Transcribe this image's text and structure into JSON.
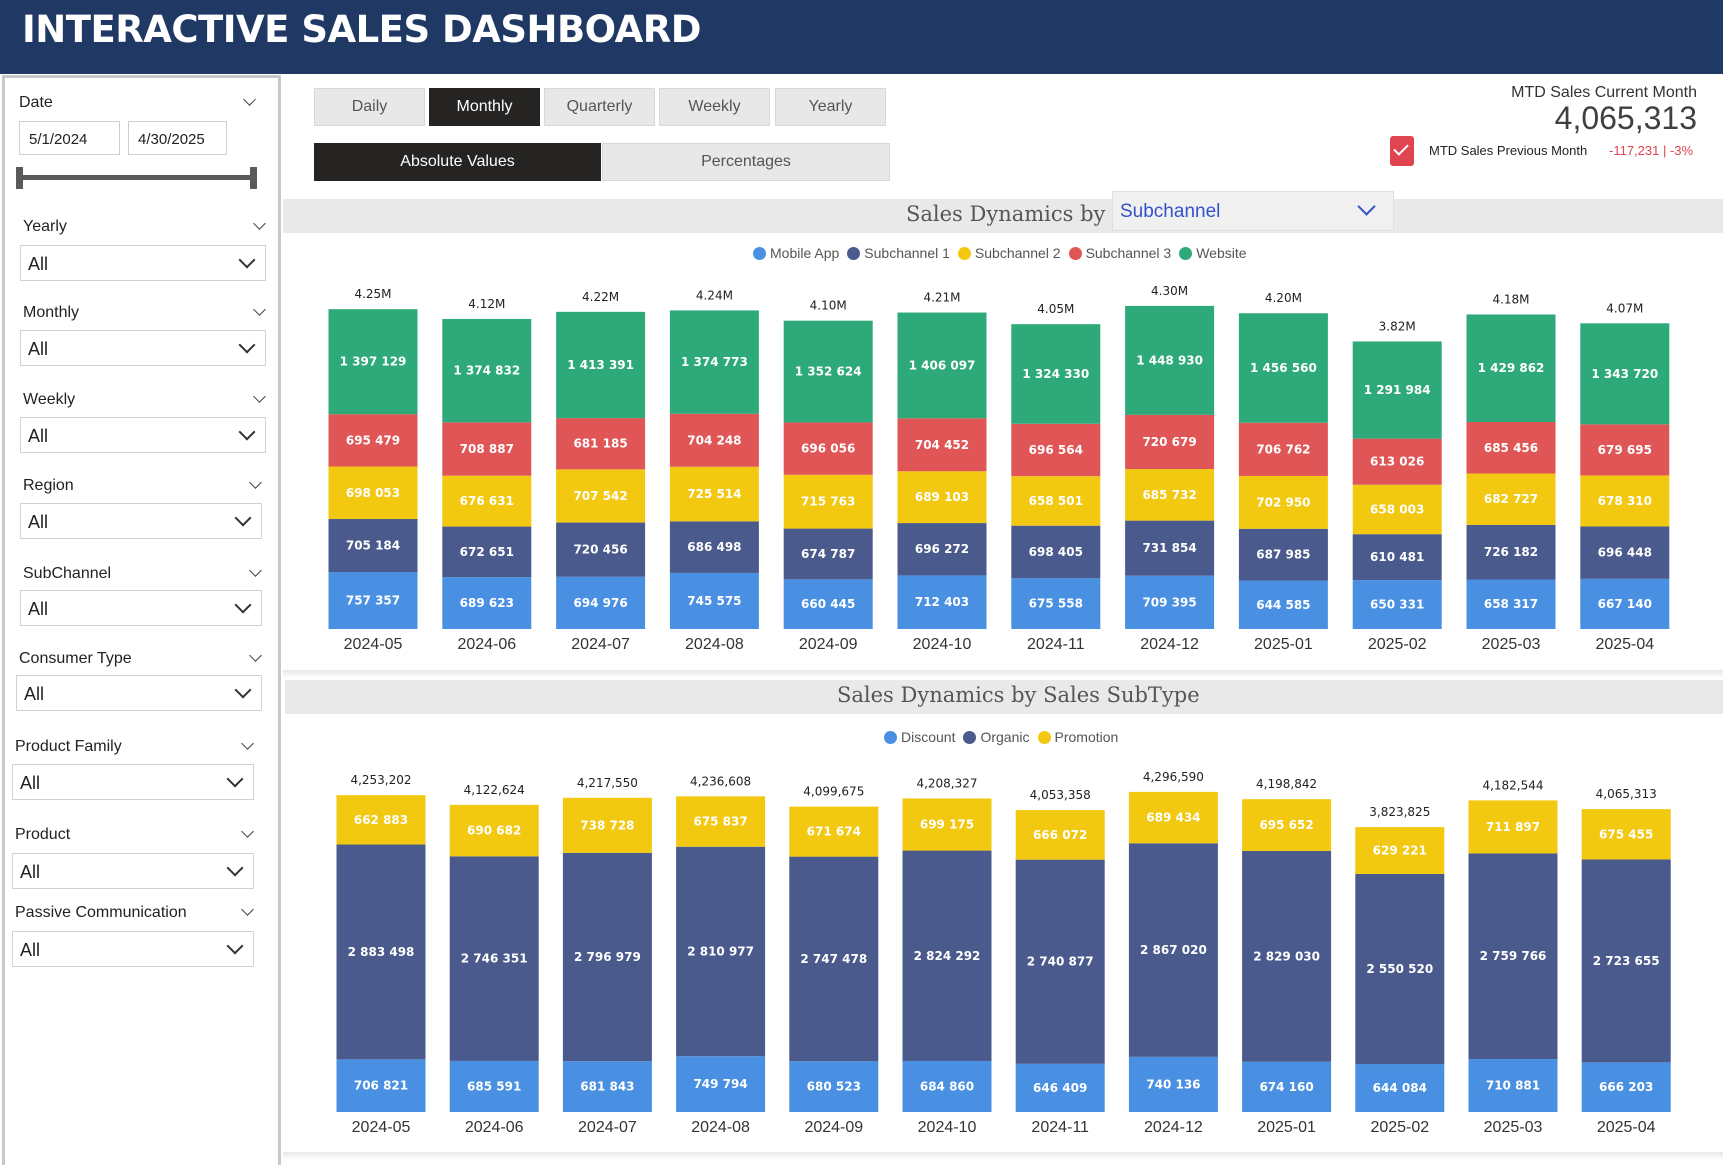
{
  "header": {
    "title": "INTERACTIVE SALES DASHBOARD"
  },
  "sidebar": {
    "date": {
      "label": "Date",
      "start": "5/1/2024",
      "end": "4/30/2025"
    },
    "filters": [
      {
        "label": "Yearly",
        "value": "All"
      },
      {
        "label": "Monthly",
        "value": "All"
      },
      {
        "label": "Weekly",
        "value": "All"
      },
      {
        "label": "Region",
        "value": "All"
      },
      {
        "label": "SubChannel",
        "value": "All"
      },
      {
        "label": "Consumer Type",
        "value": "All"
      },
      {
        "label": "Product Family",
        "value": "All"
      },
      {
        "label": "Product",
        "value": "All"
      },
      {
        "label": "Passive Communication",
        "value": "All"
      }
    ]
  },
  "period_tabs": [
    {
      "label": "Daily",
      "active": false
    },
    {
      "label": "Monthly",
      "active": true
    },
    {
      "label": "Quarterly",
      "active": false
    },
    {
      "label": "Weekly",
      "active": false
    },
    {
      "label": "Yearly",
      "active": false
    }
  ],
  "value_tabs": [
    {
      "label": "Absolute Values",
      "active": true
    },
    {
      "label": "Percentages",
      "active": false
    }
  ],
  "kpi": {
    "title": "MTD Sales Current Month",
    "value": "4,065,313",
    "prev_label": "MTD Sales Previous Month",
    "prev_delta": "-117,231  |  -3%",
    "flag_color": "#e0454f"
  },
  "chart1_header": {
    "title": "Sales Dynamics by",
    "dropdown_value": "Subchannel"
  },
  "chart2_header": {
    "title": "Sales Dynamics by Sales SubType"
  },
  "chart_data": [
    {
      "type": "bar",
      "stacked": true,
      "title": "Sales Dynamics by Subchannel",
      "categories": [
        "2024-05",
        "2024-06",
        "2024-07",
        "2024-08",
        "2024-09",
        "2024-10",
        "2024-11",
        "2024-12",
        "2025-01",
        "2025-02",
        "2025-03",
        "2025-04"
      ],
      "totals": [
        "4.25M",
        "4.12M",
        "4.22M",
        "4.24M",
        "4.10M",
        "4.21M",
        "4.05M",
        "4.30M",
        "4.20M",
        "3.82M",
        "4.18M",
        "4.07M"
      ],
      "legend_position": "top",
      "series": [
        {
          "name": "Mobile App",
          "color": "#4a90e2",
          "values": [
            757357,
            689623,
            694976,
            745575,
            660445,
            712403,
            675558,
            709395,
            644585,
            650331,
            658317,
            667140
          ]
        },
        {
          "name": "Subchannel 1",
          "color": "#4a5a8c",
          "values": [
            705184,
            672651,
            720456,
            686498,
            674787,
            696272,
            698405,
            731854,
            687985,
            610481,
            726182,
            696448
          ]
        },
        {
          "name": "Subchannel 2",
          "color": "#f2c811",
          "values": [
            698053,
            676631,
            707542,
            725514,
            715763,
            689103,
            658501,
            685732,
            702950,
            658003,
            682727,
            678310
          ]
        },
        {
          "name": "Subchannel 3",
          "color": "#e05555",
          "values": [
            695479,
            708887,
            681185,
            704248,
            696056,
            704452,
            696564,
            720679,
            706762,
            613026,
            685456,
            679695
          ]
        },
        {
          "name": "Website",
          "color": "#2eaa7a",
          "values": [
            1397129,
            1374832,
            1413391,
            1374773,
            1352624,
            1406097,
            1324330,
            1448930,
            1456560,
            1291984,
            1429862,
            1343720
          ]
        }
      ]
    },
    {
      "type": "bar",
      "stacked": true,
      "title": "Sales Dynamics by Sales SubType",
      "categories": [
        "2024-05",
        "2024-06",
        "2024-07",
        "2024-08",
        "2024-09",
        "2024-10",
        "2024-11",
        "2024-12",
        "2025-01",
        "2025-02",
        "2025-03",
        "2025-04"
      ],
      "totals": [
        "4,253,202",
        "4,122,624",
        "4,217,550",
        "4,236,608",
        "4,099,675",
        "4,208,327",
        "4,053,358",
        "4,296,590",
        "4,198,842",
        "3,823,825",
        "4,182,544",
        "4,065,313"
      ],
      "legend_position": "top",
      "series": [
        {
          "name": "Discount",
          "color": "#4a90e2",
          "values": [
            706821,
            685591,
            681843,
            749794,
            680523,
            684860,
            646409,
            740136,
            674160,
            644084,
            710881,
            666203
          ]
        },
        {
          "name": "Organic",
          "color": "#4a5a8c",
          "values": [
            2883498,
            2746351,
            2796979,
            2810977,
            2747478,
            2824292,
            2740877,
            2867020,
            2829030,
            2550520,
            2759766,
            2723655
          ]
        },
        {
          "name": "Promotion",
          "color": "#f2c811",
          "values": [
            662883,
            690682,
            738728,
            675837,
            671674,
            699175,
            666072,
            689434,
            695652,
            629221,
            711897,
            675455
          ]
        }
      ]
    }
  ]
}
